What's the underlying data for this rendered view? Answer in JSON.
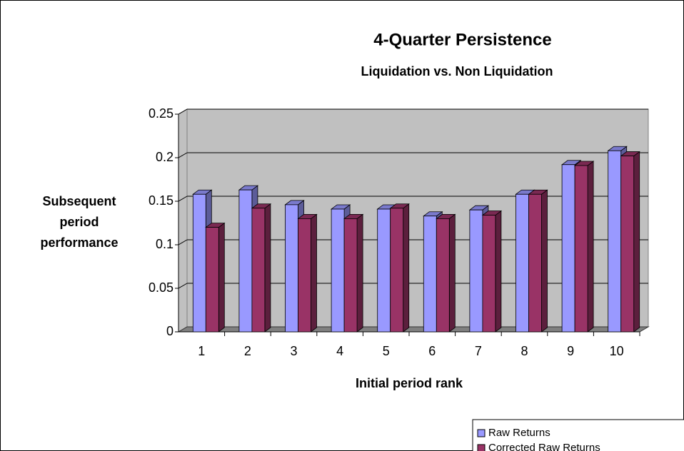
{
  "chart_data": {
    "type": "bar3d",
    "title": "4-Quarter Persistence",
    "subtitle": "Liquidation vs. Non Liquidation",
    "x_label": "Initial period rank",
    "y_label": "Subsequent period performance",
    "categories": [
      "1",
      "2",
      "3",
      "4",
      "5",
      "6",
      "7",
      "8",
      "9",
      "10"
    ],
    "series": [
      {
        "name": "Raw Returns",
        "color": "#9999ff",
        "values": [
          0.158,
          0.163,
          0.146,
          0.141,
          0.141,
          0.133,
          0.14,
          0.158,
          0.192,
          0.208
        ]
      },
      {
        "name": "Corrected Raw Returns",
        "color": "#993366",
        "values": [
          0.12,
          0.142,
          0.13,
          0.13,
          0.142,
          0.13,
          0.134,
          0.158,
          0.191,
          0.202
        ]
      }
    ],
    "ylim": [
      0,
      0.25
    ],
    "yticks": [
      0,
      0.05,
      0.1,
      0.15,
      0.2,
      0.25
    ],
    "grid": true,
    "legend": "bottom-right"
  }
}
